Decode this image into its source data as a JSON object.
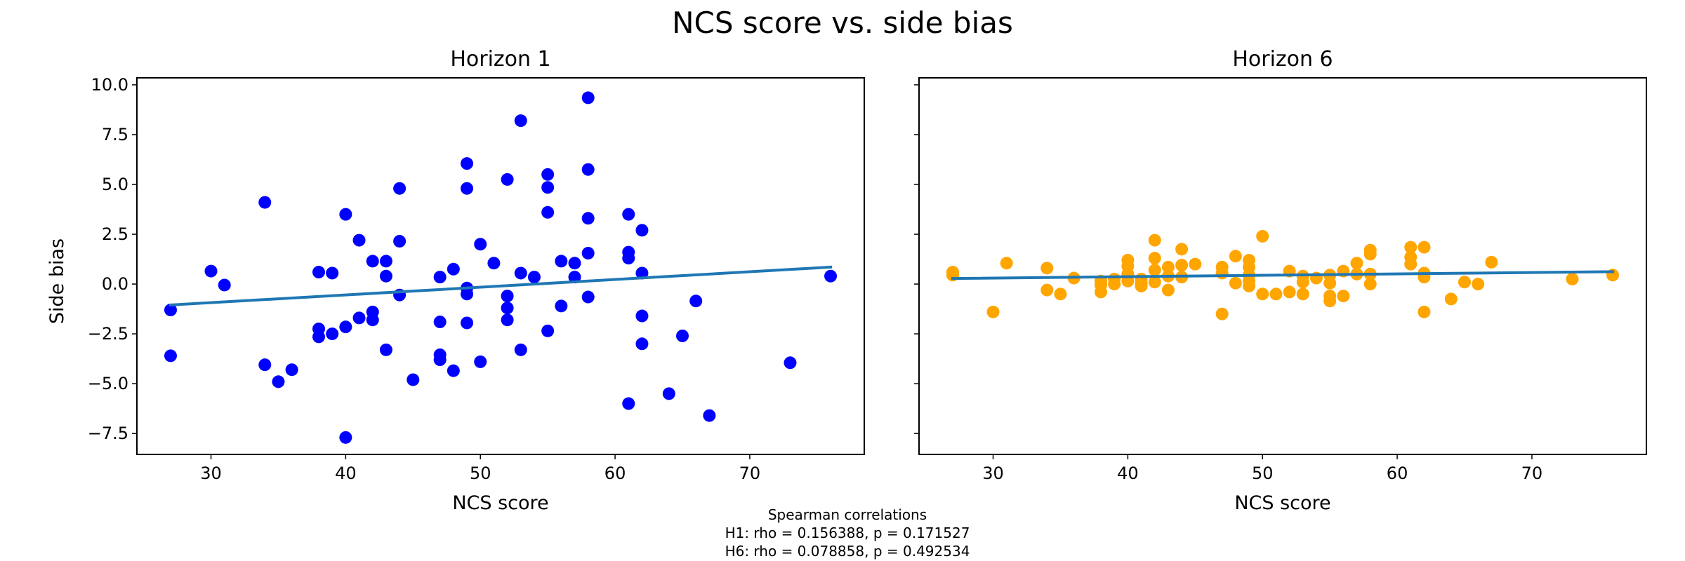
{
  "figure": {
    "title": "NCS score vs. side bias",
    "note_lines": [
      "Spearman correlations",
      "H1: rho = 0.156388, p = 0.171527",
      "H6: rho = 0.078858, p = 0.492534"
    ]
  },
  "chart_data": [
    {
      "type": "scatter",
      "title": "Horizon 1",
      "xlabel": "NCS score",
      "ylabel": "Side bias",
      "xlim": [
        24.5,
        78.5
      ],
      "ylim": [
        -8.55,
        10.35
      ],
      "xticks": [
        30,
        40,
        50,
        60,
        70
      ],
      "yticks": [
        -7.5,
        -5.0,
        -2.5,
        0.0,
        2.5,
        5.0,
        7.5,
        10.0
      ],
      "ytick_labels": [
        "−7.5",
        "−5.0",
        "−2.5",
        "0.0",
        "2.5",
        "5.0",
        "7.5",
        "10.0"
      ],
      "grid": false,
      "point_color": "#0000ff",
      "line_color": "#1f77b4",
      "trend_line": {
        "x": [
          27,
          76
        ],
        "y": [
          -1.05,
          0.85
        ]
      },
      "points": [
        [
          27,
          -1.3
        ],
        [
          27,
          -3.6
        ],
        [
          30,
          0.65
        ],
        [
          31,
          -0.05
        ],
        [
          34,
          4.1
        ],
        [
          34,
          -4.05
        ],
        [
          35,
          -4.9
        ],
        [
          36,
          -4.3
        ],
        [
          38,
          0.6
        ],
        [
          38,
          -2.25
        ],
        [
          38,
          -2.65
        ],
        [
          39,
          0.55
        ],
        [
          39,
          -2.5
        ],
        [
          40,
          3.5
        ],
        [
          40,
          -2.15
        ],
        [
          40,
          -7.7
        ],
        [
          41,
          2.2
        ],
        [
          41,
          -1.7
        ],
        [
          42,
          1.15
        ],
        [
          42,
          -1.4
        ],
        [
          42,
          -1.8
        ],
        [
          43,
          1.15
        ],
        [
          43,
          0.4
        ],
        [
          43,
          -3.3
        ],
        [
          44,
          4.8
        ],
        [
          44,
          2.15
        ],
        [
          44,
          -0.55
        ],
        [
          45,
          -4.8
        ],
        [
          47,
          0.35
        ],
        [
          47,
          -1.9
        ],
        [
          47,
          -3.55
        ],
        [
          47,
          -3.8
        ],
        [
          48,
          0.75
        ],
        [
          48,
          -4.35
        ],
        [
          49,
          6.05
        ],
        [
          49,
          4.8
        ],
        [
          49,
          -0.2
        ],
        [
          49,
          -0.5
        ],
        [
          49,
          -1.95
        ],
        [
          50,
          2.0
        ],
        [
          50,
          -3.9
        ],
        [
          51,
          1.05
        ],
        [
          52,
          5.25
        ],
        [
          52,
          -0.6
        ],
        [
          52,
          -1.2
        ],
        [
          52,
          -1.8
        ],
        [
          53,
          8.2
        ],
        [
          53,
          0.55
        ],
        [
          53,
          -3.3
        ],
        [
          54,
          0.35
        ],
        [
          55,
          5.5
        ],
        [
          55,
          4.85
        ],
        [
          55,
          3.6
        ],
        [
          55,
          -2.35
        ],
        [
          56,
          1.15
        ],
        [
          56,
          -1.1
        ],
        [
          57,
          1.05
        ],
        [
          57,
          0.35
        ],
        [
          58,
          9.35
        ],
        [
          58,
          5.75
        ],
        [
          58,
          3.3
        ],
        [
          58,
          1.55
        ],
        [
          58,
          -0.65
        ],
        [
          61,
          3.5
        ],
        [
          61,
          1.6
        ],
        [
          61,
          1.3
        ],
        [
          61,
          -6.0
        ],
        [
          62,
          2.7
        ],
        [
          62,
          0.55
        ],
        [
          62,
          -1.6
        ],
        [
          62,
          -3.0
        ],
        [
          64,
          -5.5
        ],
        [
          65,
          -2.6
        ],
        [
          66,
          -0.85
        ],
        [
          67,
          -6.6
        ],
        [
          73,
          -3.95
        ],
        [
          76,
          0.4
        ]
      ]
    },
    {
      "type": "scatter",
      "title": "Horizon 6",
      "xlabel": "NCS score",
      "ylabel": "",
      "xlim": [
        24.5,
        78.5
      ],
      "ylim": [
        -8.55,
        10.35
      ],
      "xticks": [
        30,
        40,
        50,
        60,
        70
      ],
      "grid": false,
      "point_color": "#ffa500",
      "line_color": "#1f77b4",
      "trend_line": {
        "x": [
          27,
          76
        ],
        "y": [
          0.28,
          0.62
        ]
      },
      "points": [
        [
          27,
          0.6
        ],
        [
          27,
          0.45
        ],
        [
          30,
          -1.4
        ],
        [
          31,
          1.05
        ],
        [
          34,
          0.8
        ],
        [
          34,
          -0.3
        ],
        [
          35,
          -0.5
        ],
        [
          36,
          0.3
        ],
        [
          38,
          0.15
        ],
        [
          38,
          -0.05
        ],
        [
          38,
          -0.4
        ],
        [
          39,
          0.25
        ],
        [
          39,
          0.0
        ],
        [
          40,
          1.2
        ],
        [
          40,
          0.9
        ],
        [
          40,
          0.5
        ],
        [
          40,
          0.15
        ],
        [
          41,
          0.25
        ],
        [
          41,
          0.05
        ],
        [
          41,
          -0.1
        ],
        [
          42,
          2.2
        ],
        [
          42,
          1.3
        ],
        [
          42,
          0.7
        ],
        [
          42,
          0.1
        ],
        [
          43,
          0.85
        ],
        [
          43,
          0.4
        ],
        [
          43,
          -0.3
        ],
        [
          44,
          1.75
        ],
        [
          44,
          0.95
        ],
        [
          44,
          0.35
        ],
        [
          45,
          1.0
        ],
        [
          47,
          0.85
        ],
        [
          47,
          0.55
        ],
        [
          47,
          -1.5
        ],
        [
          48,
          1.4
        ],
        [
          48,
          0.05
        ],
        [
          49,
          1.2
        ],
        [
          49,
          0.85
        ],
        [
          49,
          0.45
        ],
        [
          49,
          0.15
        ],
        [
          49,
          -0.1
        ],
        [
          50,
          2.4
        ],
        [
          50,
          -0.5
        ],
        [
          51,
          -0.5
        ],
        [
          52,
          0.65
        ],
        [
          52,
          -0.4
        ],
        [
          53,
          0.4
        ],
        [
          53,
          0.1
        ],
        [
          53,
          -0.5
        ],
        [
          54,
          0.3
        ],
        [
          55,
          0.45
        ],
        [
          55,
          0.05
        ],
        [
          55,
          -0.6
        ],
        [
          55,
          -0.85
        ],
        [
          56,
          0.65
        ],
        [
          56,
          -0.6
        ],
        [
          57,
          1.05
        ],
        [
          57,
          0.5
        ],
        [
          58,
          1.7
        ],
        [
          58,
          1.5
        ],
        [
          58,
          0.5
        ],
        [
          58,
          0.0
        ],
        [
          61,
          1.85
        ],
        [
          61,
          1.35
        ],
        [
          61,
          1.0
        ],
        [
          62,
          1.85
        ],
        [
          62,
          0.55
        ],
        [
          62,
          0.35
        ],
        [
          62,
          -1.4
        ],
        [
          64,
          -0.75
        ],
        [
          65,
          0.1
        ],
        [
          66,
          0.0
        ],
        [
          67,
          1.1
        ],
        [
          73,
          0.25
        ],
        [
          76,
          0.45
        ]
      ]
    }
  ]
}
